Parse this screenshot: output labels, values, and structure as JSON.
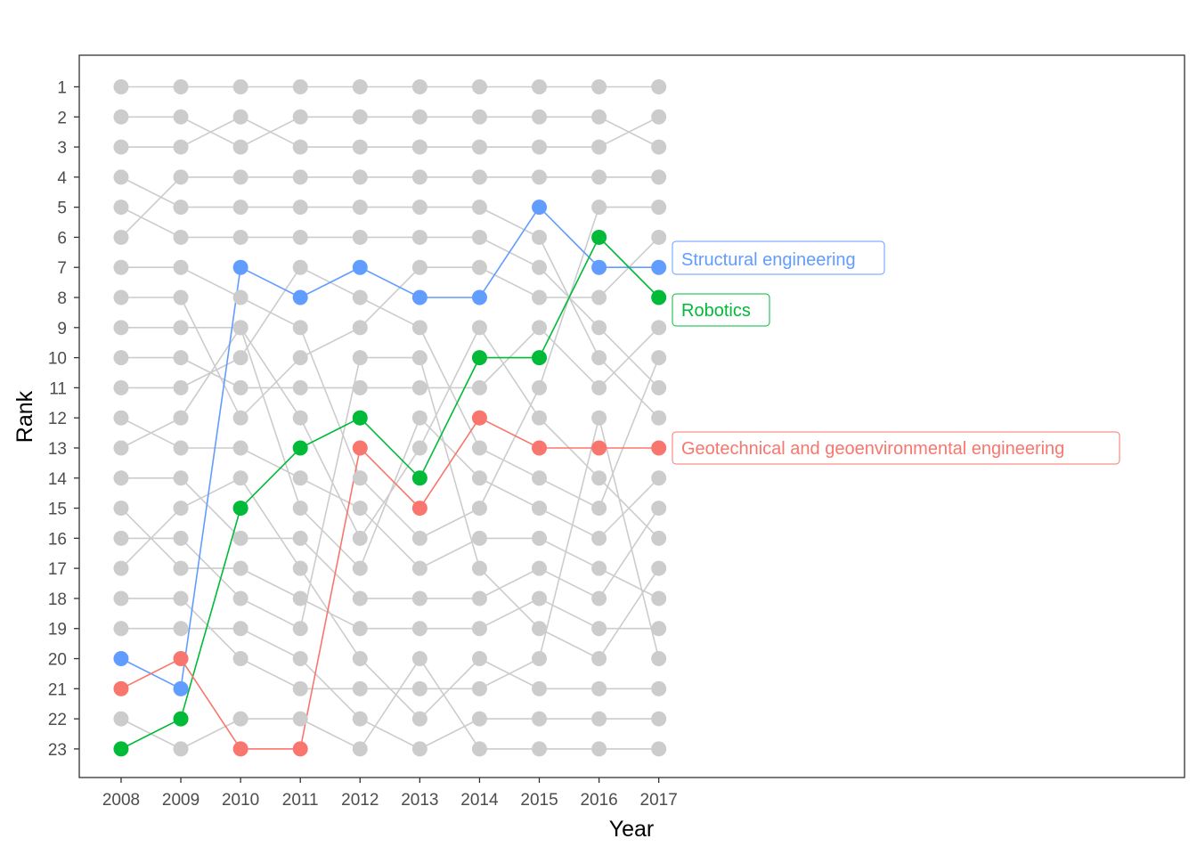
{
  "chart_data": {
    "type": "line",
    "xlabel": "Year",
    "ylabel": "Rank",
    "x": [
      2008,
      2009,
      2010,
      2011,
      2012,
      2013,
      2014,
      2015,
      2016,
      2017
    ],
    "xlim": [
      2007.3,
      2025.8
    ],
    "ylim": [
      23.95,
      -0.05
    ],
    "y_reversed": true,
    "y_ticks": [
      1,
      2,
      3,
      4,
      5,
      6,
      7,
      8,
      9,
      10,
      11,
      12,
      13,
      14,
      15,
      16,
      17,
      18,
      19,
      20,
      21,
      22,
      23
    ],
    "grid": false,
    "legend": "none",
    "background_color": "#cccccc",
    "highlighted_series": [
      {
        "name": "Structural engineering",
        "color": "#619CFF",
        "values": [
          20,
          21,
          7,
          8,
          7,
          8,
          8,
          5,
          7,
          7
        ]
      },
      {
        "name": "Robotics",
        "color": "#00BA38",
        "values": [
          23,
          22,
          15,
          13,
          12,
          14,
          10,
          10,
          6,
          8
        ]
      },
      {
        "name": "Geotechnical and geoenvironmental engineering",
        "color": "#F8766D",
        "values": [
          21,
          20,
          23,
          23,
          13,
          15,
          12,
          13,
          13,
          13
        ]
      }
    ],
    "background_series": [
      [
        1,
        1,
        1,
        1,
        1,
        1,
        1,
        1,
        1,
        1
      ],
      [
        2,
        2,
        3,
        2,
        2,
        2,
        2,
        2,
        2,
        3
      ],
      [
        3,
        3,
        2,
        3,
        3,
        3,
        3,
        3,
        3,
        2
      ],
      [
        4,
        5,
        5,
        5,
        5,
        5,
        5,
        6,
        10,
        12
      ],
      [
        5,
        6,
        6,
        6,
        6,
        6,
        6,
        7,
        9,
        11
      ],
      [
        6,
        4,
        4,
        4,
        4,
        4,
        4,
        4,
        4,
        4
      ],
      [
        7,
        7,
        8,
        9,
        14,
        16,
        15,
        11,
        5,
        5
      ],
      [
        8,
        8,
        12,
        10,
        9,
        7,
        7,
        8,
        8,
        6
      ],
      [
        9,
        9,
        9,
        12,
        16,
        13,
        9,
        12,
        14,
        16
      ],
      [
        10,
        10,
        11,
        11,
        11,
        11,
        11,
        9,
        11,
        9
      ],
      [
        11,
        11,
        10,
        7,
        8,
        9,
        13,
        14,
        15,
        10
      ],
      [
        12,
        13,
        13,
        14,
        15,
        17,
        16,
        16,
        17,
        18
      ],
      [
        13,
        12,
        9,
        15,
        17,
        12,
        14,
        15,
        16,
        14
      ],
      [
        14,
        14,
        16,
        16,
        18,
        18,
        18,
        17,
        18,
        15
      ],
      [
        15,
        17,
        17,
        18,
        19,
        19,
        19,
        18,
        19,
        19
      ],
      [
        16,
        16,
        18,
        19,
        10,
        10,
        17,
        19,
        20,
        17
      ],
      [
        17,
        15,
        14,
        17,
        20,
        22,
        20,
        21,
        21,
        21
      ],
      [
        18,
        18,
        20,
        21,
        21,
        21,
        21,
        20,
        12,
        20
      ],
      [
        19,
        19,
        19,
        20,
        22,
        23,
        22,
        22,
        22,
        22
      ],
      [
        22,
        23,
        22,
        22,
        23,
        20,
        23,
        23,
        23,
        23
      ]
    ]
  },
  "callouts": {
    "structural": "Structural engineering",
    "robotics": "Robotics",
    "geotechnical": "Geotechnical and geoenvironmental engineering"
  }
}
